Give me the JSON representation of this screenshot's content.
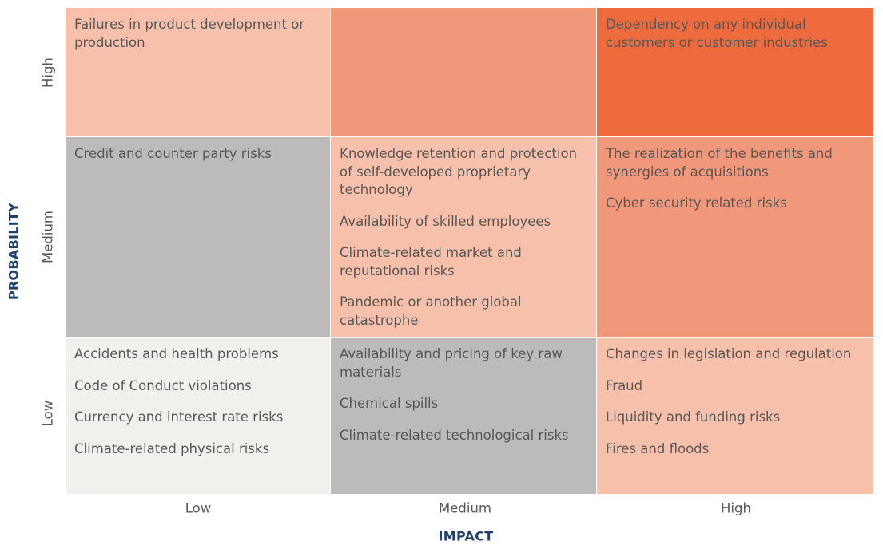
{
  "axes": {
    "y_title": "PROBABILITY",
    "x_title": "IMPACT",
    "y_ticks": [
      "High",
      "Medium",
      "Low"
    ],
    "x_ticks": [
      "Low",
      "Medium",
      "High"
    ]
  },
  "matrix": [
    {
      "row": "High",
      "cells": [
        {
          "col": "Low",
          "color": "#f7c0aa",
          "items": [
            "Failures in product development or production"
          ]
        },
        {
          "col": "Medium",
          "color": "#f2987a",
          "items": []
        },
        {
          "col": "High",
          "color": "#ee6b3e",
          "items": [
            "Dependency on any individual customers or customer industries"
          ]
        }
      ]
    },
    {
      "row": "Medium",
      "cells": [
        {
          "col": "Low",
          "color": "#bdbbb9",
          "items": [
            "Credit and counter party risks"
          ]
        },
        {
          "col": "Medium",
          "color": "#f7c0aa",
          "items": [
            "Knowledge retention and protection of self-developed proprietary technology",
            "Availability of skilled employees",
            "Climate-related market and reputational risks",
            "Pandemic or another global catastrophe"
          ]
        },
        {
          "col": "High",
          "color": "#f2987a",
          "items": [
            "The realization of the benefits and synergies of acquisitions",
            "Cyber security related risks"
          ]
        }
      ]
    },
    {
      "row": "Low",
      "cells": [
        {
          "col": "Low",
          "color": "#f2f0ec",
          "items": [
            "Accidents and health problems",
            "Code of Conduct violations",
            "Currency and interest rate risks",
            "Climate-related physical risks"
          ]
        },
        {
          "col": "Medium",
          "color": "#bdbbb9",
          "items": [
            "Availability and pricing of key raw materials",
            "Chemical spills",
            "Climate-related technological risks"
          ]
        },
        {
          "col": "High",
          "color": "#f7c0aa",
          "items": [
            "Changes in legislation and regulation",
            "Fraud",
            "Liquidity and funding risks",
            "Fires and floods"
          ]
        }
      ]
    }
  ]
}
